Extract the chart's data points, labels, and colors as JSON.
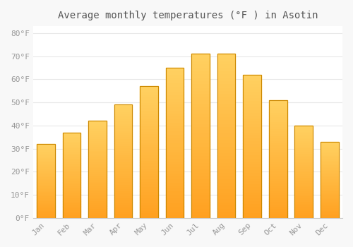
{
  "categories": [
    "Jan",
    "Feb",
    "Mar",
    "Apr",
    "May",
    "Jun",
    "Jul",
    "Aug",
    "Sep",
    "Oct",
    "Nov",
    "Dec"
  ],
  "values": [
    32,
    37,
    42,
    49,
    57,
    65,
    71,
    71,
    62,
    51,
    40,
    33
  ],
  "bar_color_top": "#FFD060",
  "bar_color_bottom": "#FFA020",
  "bar_edge_color": "#CC8800",
  "background_color": "#F8F8F8",
  "plot_bg_color": "#FFFFFF",
  "grid_color": "#E8E8E8",
  "title": "Average monthly temperatures (°F ) in Asotin",
  "title_fontsize": 10,
  "ylabel_ticks": [
    "0°F",
    "10°F",
    "20°F",
    "30°F",
    "40°F",
    "50°F",
    "60°F",
    "70°F",
    "80°F"
  ],
  "ytick_values": [
    0,
    10,
    20,
    30,
    40,
    50,
    60,
    70,
    80
  ],
  "ylim": [
    0,
    83
  ],
  "tick_fontsize": 8,
  "label_color": "#999999",
  "title_color": "#555555",
  "bar_width": 0.7,
  "n_gradient_steps": 50
}
